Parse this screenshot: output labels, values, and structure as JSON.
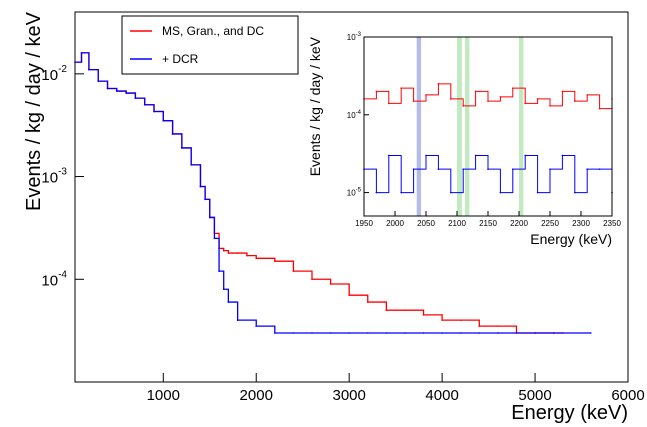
{
  "chart_data": [
    {
      "type": "line",
      "title": "",
      "xlabel": "Energy (keV)",
      "ylabel": "Events / kg / day / keV",
      "xlim": [
        50,
        6000
      ],
      "ylim": [
        1e-05,
        0.04
      ],
      "yscale": "log",
      "xticks": [
        "1000",
        "2000",
        "3000",
        "4000",
        "5000",
        "6000"
      ],
      "yticks": [
        {
          "value": 0.01,
          "base": "10",
          "exp": "-2"
        },
        {
          "value": 0.001,
          "base": "10",
          "exp": "-3"
        },
        {
          "value": 0.0001,
          "base": "10",
          "exp": "-4"
        }
      ],
      "grid": false,
      "legend_position": "top-center",
      "series": [
        {
          "name": "MS, Gran., and DC",
          "color": "#ff0000",
          "x": [
            50,
            120,
            200,
            300,
            400,
            500,
            600,
            700,
            800,
            900,
            1000,
            1100,
            1200,
            1300,
            1400,
            1450,
            1500,
            1550,
            1600,
            1650,
            1700,
            1800,
            1900,
            2000,
            2200,
            2400,
            2600,
            2800,
            3000,
            3200,
            3400,
            3600,
            3800,
            4000,
            4200,
            4400,
            4600,
            4800,
            5000,
            5200,
            5300
          ],
          "y": [
            0.013,
            0.016,
            0.011,
            0.0085,
            0.0072,
            0.0068,
            0.0065,
            0.0058,
            0.005,
            0.0043,
            0.0035,
            0.0026,
            0.0019,
            0.0013,
            0.0008,
            0.0006,
            0.0004,
            0.00028,
            0.0002,
            0.00019,
            0.00018,
            0.00018,
            0.00017,
            0.00016,
            0.00015,
            0.00012,
            0.0001,
            9e-05,
            7e-05,
            6e-05,
            5e-05,
            5e-05,
            4.5e-05,
            4e-05,
            4e-05,
            3.5e-05,
            3.5e-05,
            3e-05,
            3e-05,
            3e-05,
            3e-05
          ]
        },
        {
          "name": "+ DCR",
          "color": "#0000ff",
          "x": [
            50,
            120,
            200,
            300,
            400,
            500,
            600,
            700,
            800,
            900,
            1000,
            1100,
            1200,
            1300,
            1400,
            1450,
            1500,
            1550,
            1600,
            1650,
            1700,
            1800,
            2000,
            2200,
            2400,
            2600,
            2800,
            3000,
            3200,
            3400,
            3600,
            3800,
            4000,
            4200,
            4400,
            4600,
            4800,
            5000,
            5200,
            5600
          ],
          "y": [
            0.013,
            0.016,
            0.011,
            0.0085,
            0.0072,
            0.0068,
            0.0065,
            0.0058,
            0.005,
            0.0043,
            0.0035,
            0.0026,
            0.0019,
            0.0013,
            0.0008,
            0.0006,
            0.0004,
            0.00025,
            0.00012,
            8e-05,
            6e-05,
            4e-05,
            3.5e-05,
            3e-05,
            3e-05,
            3e-05,
            3e-05,
            3e-05,
            3e-05,
            3e-05,
            3e-05,
            3e-05,
            3e-05,
            3e-05,
            3e-05,
            3e-05,
            3e-05,
            3e-05,
            3e-05,
            3e-05
          ]
        }
      ]
    },
    {
      "type": "line",
      "title": "",
      "xlabel": "Energy (keV)",
      "ylabel": "Events / kg / day / keV",
      "xlim": [
        1950,
        2350
      ],
      "ylim": [
        5e-06,
        0.001
      ],
      "yscale": "log",
      "xticks": [
        "1950",
        "2000",
        "2050",
        "2100",
        "2150",
        "2200",
        "2250",
        "2300",
        "2350"
      ],
      "yticks": [
        {
          "value": 0.001,
          "base": "10",
          "exp": "-3"
        },
        {
          "value": 0.0001,
          "base": "10",
          "exp": "-4"
        },
        {
          "value": 1e-05,
          "base": "10",
          "exp": "-5"
        }
      ],
      "highlight_bands": [
        {
          "x0": 2035,
          "x1": 2042,
          "color": "#a9b0e6"
        },
        {
          "x0": 2100,
          "x1": 2108,
          "color": "#b6e6b6"
        },
        {
          "x0": 2113,
          "x1": 2120,
          "color": "#b6e6b6"
        },
        {
          "x0": 2200,
          "x1": 2207,
          "color": "#b6e6b6"
        }
      ],
      "series": [
        {
          "name": "MS, Gran., and DC",
          "color": "#ff0000",
          "x": [
            1950,
            1970,
            1990,
            2010,
            2030,
            2050,
            2070,
            2090,
            2110,
            2130,
            2150,
            2170,
            2190,
            2210,
            2230,
            2250,
            2270,
            2290,
            2310,
            2330,
            2350
          ],
          "y": [
            0.00016,
            0.0002,
            0.00014,
            0.00022,
            0.00015,
            0.00018,
            0.00025,
            0.00016,
            0.00013,
            0.0002,
            0.00015,
            0.00017,
            0.00022,
            0.00014,
            0.00016,
            0.00013,
            0.0002,
            0.00015,
            0.00018,
            0.00012,
            0.00016
          ]
        },
        {
          "name": "+ DCR",
          "color": "#0000ff",
          "x": [
            1950,
            1970,
            1990,
            2010,
            2030,
            2050,
            2070,
            2090,
            2110,
            2130,
            2150,
            2170,
            2190,
            2210,
            2230,
            2250,
            2270,
            2290,
            2310,
            2330,
            2350
          ],
          "y": [
            2e-05,
            1e-05,
            3e-05,
            1e-05,
            2e-05,
            3e-05,
            2e-05,
            1e-05,
            2e-05,
            3e-05,
            2e-05,
            1e-05,
            2e-05,
            3e-05,
            1e-05,
            2e-05,
            3e-05,
            1e-05,
            2e-05,
            2e-05,
            1e-05
          ]
        }
      ]
    }
  ]
}
